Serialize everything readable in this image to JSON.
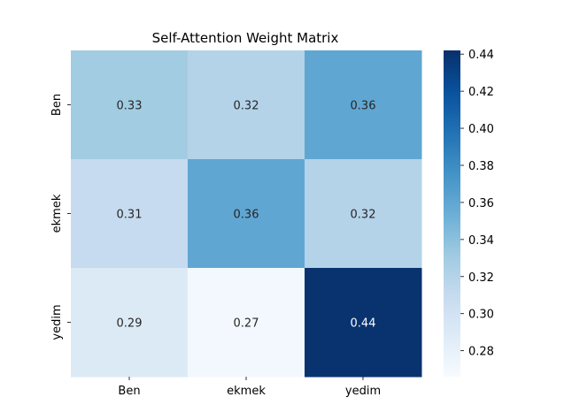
{
  "chart_data": {
    "type": "heatmap",
    "title": "Self-Attention Weight Matrix",
    "x_categories": [
      "Ben",
      "ekmek",
      "yedim"
    ],
    "y_categories": [
      "Ben",
      "ekmek",
      "yedim"
    ],
    "values": [
      [
        0.33,
        0.32,
        0.36
      ],
      [
        0.31,
        0.36,
        0.32
      ],
      [
        0.29,
        0.27,
        0.44
      ]
    ],
    "cell_labels": [
      [
        "0.33",
        "0.32",
        "0.36"
      ],
      [
        "0.31",
        "0.36",
        "0.32"
      ],
      [
        "0.29",
        "0.27",
        "0.44"
      ]
    ],
    "colormap": "Blues",
    "colorbar": {
      "vmin": 0.266,
      "vmax": 0.442,
      "ticks": [
        0.28,
        0.3,
        0.32,
        0.34,
        0.36,
        0.38,
        0.4,
        0.42,
        0.44
      ],
      "tick_labels": [
        "0.28",
        "0.30",
        "0.32",
        "0.34",
        "0.36",
        "0.38",
        "0.40",
        "0.42",
        "0.44"
      ]
    },
    "colors": {
      "blues_stops": [
        "#f7fbff",
        "#deebf7",
        "#c6dbef",
        "#9ecae1",
        "#6baed6",
        "#4292c6",
        "#2171b5",
        "#08519c",
        "#08306b"
      ],
      "text_dark": "#262626",
      "text_light": "#ffffff"
    }
  }
}
